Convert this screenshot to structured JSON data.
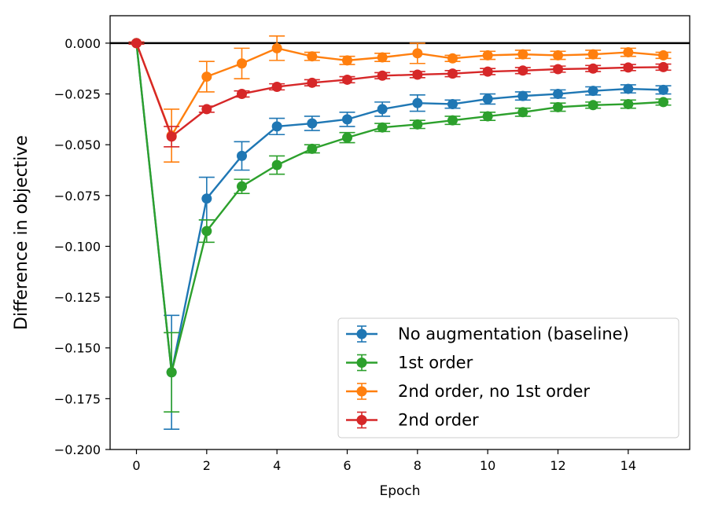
{
  "chart_data": {
    "type": "line",
    "title": "",
    "xlabel": "Epoch",
    "ylabel": "Difference in objective",
    "xlim": [
      -0.75,
      15.75
    ],
    "ylim": [
      -0.2,
      0.0135
    ],
    "xticks": [
      0,
      2,
      4,
      6,
      8,
      10,
      12,
      14
    ],
    "xtick_labels": [
      "0",
      "2",
      "4",
      "6",
      "8",
      "10",
      "12",
      "14"
    ],
    "yticks": [
      0.0,
      -0.025,
      -0.05,
      -0.075,
      -0.1,
      -0.125,
      -0.15,
      -0.175,
      -0.2
    ],
    "ytick_labels": [
      "0.000",
      "−0.025",
      "−0.050",
      "−0.075",
      "−0.100",
      "−0.125",
      "−0.150",
      "−0.175",
      "−0.200"
    ],
    "grid": false,
    "reference_line": {
      "y": 0.0,
      "color": "#000000"
    },
    "legend_position": "lower-right",
    "x": [
      0,
      1,
      2,
      3,
      4,
      5,
      6,
      7,
      8,
      9,
      10,
      11,
      12,
      13,
      14,
      15
    ],
    "series": [
      {
        "name": "No augmentation (baseline)",
        "color": "#1f77b4",
        "values": [
          0.0,
          -0.162,
          -0.0765,
          -0.0555,
          -0.041,
          -0.0395,
          -0.0375,
          -0.0325,
          -0.0295,
          -0.03,
          -0.0275,
          -0.026,
          -0.025,
          -0.0235,
          -0.0225,
          -0.023
        ],
        "errors": [
          0.0005,
          0.028,
          0.0105,
          0.007,
          0.004,
          0.0035,
          0.0035,
          0.0035,
          0.004,
          0.002,
          0.0025,
          0.002,
          0.002,
          0.002,
          0.002,
          0.002
        ]
      },
      {
        "name": "1st order",
        "color": "#2ca02c",
        "values": [
          0.0,
          -0.162,
          -0.0925,
          -0.0705,
          -0.06,
          -0.052,
          -0.0465,
          -0.0415,
          -0.04,
          -0.038,
          -0.036,
          -0.034,
          -0.0315,
          -0.0305,
          -0.03,
          -0.029
        ],
        "errors": [
          0.0005,
          0.0195,
          0.0055,
          0.0035,
          0.0045,
          0.002,
          0.0025,
          0.002,
          0.002,
          0.002,
          0.002,
          0.002,
          0.002,
          0.0015,
          0.002,
          0.0015
        ]
      },
      {
        "name": "2nd order, no 1st order",
        "color": "#ff7f0e",
        "values": [
          0.0,
          -0.0455,
          -0.0165,
          -0.01,
          -0.0025,
          -0.0065,
          -0.0085,
          -0.007,
          -0.005,
          -0.0075,
          -0.006,
          -0.0055,
          -0.006,
          -0.0055,
          -0.0045,
          -0.006
        ],
        "errors": [
          0.0005,
          0.013,
          0.0075,
          0.0075,
          0.006,
          0.002,
          0.002,
          0.002,
          0.005,
          0.0015,
          0.002,
          0.002,
          0.002,
          0.002,
          0.002,
          0.0015
        ]
      },
      {
        "name": "2nd order",
        "color": "#d62728",
        "values": [
          0.0,
          -0.046,
          -0.0325,
          -0.025,
          -0.0215,
          -0.0195,
          -0.018,
          -0.016,
          -0.0155,
          -0.015,
          -0.014,
          -0.0135,
          -0.0128,
          -0.0125,
          -0.012,
          -0.0118
        ],
        "errors": [
          0.0005,
          0.005,
          0.0015,
          0.0015,
          0.0015,
          0.0015,
          0.0015,
          0.0015,
          0.0015,
          0.0015,
          0.0015,
          0.0015,
          0.0015,
          0.0015,
          0.0015,
          0.0015
        ]
      }
    ]
  }
}
